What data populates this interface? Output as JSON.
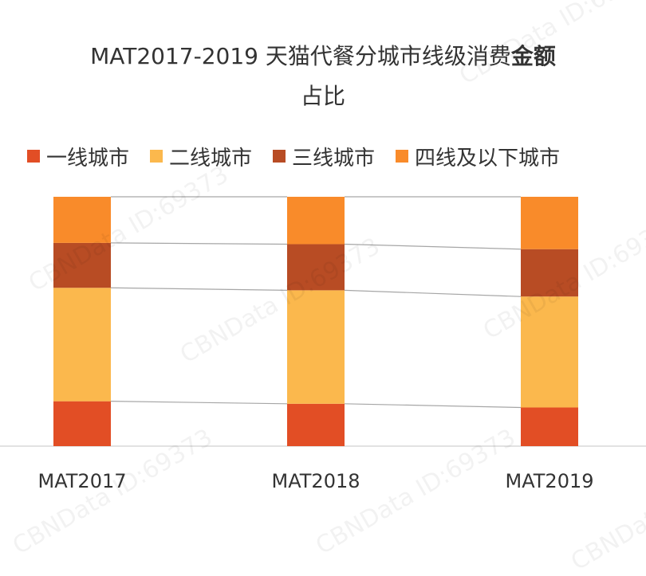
{
  "chart_data": {
    "type": "bar",
    "stacked": true,
    "normalized": true,
    "title_main": "MAT2017-2019 天猫代餐分城市线级消费",
    "title_bold": "金额",
    "title_line2": "占比",
    "categories": [
      "MAT2017",
      "MAT2018",
      "MAT2019"
    ],
    "series": [
      {
        "name": "一线城市",
        "color": "#E24E25",
        "values": [
          0.18,
          0.17,
          0.155
        ]
      },
      {
        "name": "二线城市",
        "color": "#FBB84D",
        "values": [
          0.455,
          0.455,
          0.445
        ]
      },
      {
        "name": "三线城市",
        "color": "#B84C24",
        "values": [
          0.18,
          0.185,
          0.19
        ]
      },
      {
        "name": "四线及以下城市",
        "color": "#F98B2A",
        "values": [
          0.185,
          0.19,
          0.21
        ]
      }
    ],
    "ylim": [
      0,
      1
    ],
    "grid": false,
    "legend_position": "top"
  },
  "watermark": "CBNData ID:69373"
}
